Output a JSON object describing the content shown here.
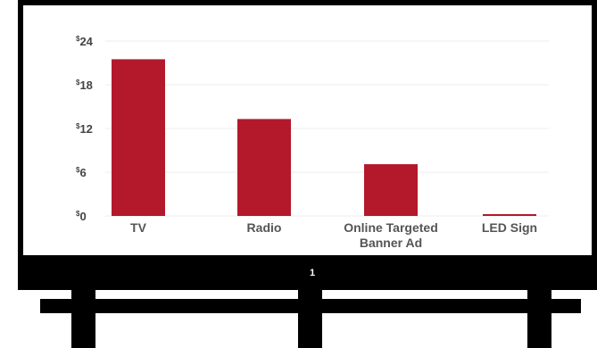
{
  "chart_data": {
    "type": "bar",
    "categories": [
      "TV",
      "Radio",
      "Online Targeted Banner Ad",
      "LED Sign"
    ],
    "category_label_lines": [
      [
        "TV"
      ],
      [
        "Radio"
      ],
      [
        "Online Targeted",
        "Banner Ad"
      ],
      [
        "LED Sign"
      ]
    ],
    "values": [
      21.5,
      13.3,
      7.1,
      0.25
    ],
    "yticks": [
      0,
      6,
      12,
      18,
      24
    ],
    "currency_symbol": "$",
    "ylim": [
      0,
      24
    ],
    "grid": true,
    "legend": "none",
    "title": "",
    "xlabel": "",
    "ylabel": ""
  },
  "billboard": {
    "page_number": "1"
  },
  "colors": {
    "bar": "#b3192a",
    "frame": "#000000",
    "panel": "#ffffff",
    "grid": "#eeeeee",
    "tick_text": "#444444",
    "category_text": "#555555"
  }
}
